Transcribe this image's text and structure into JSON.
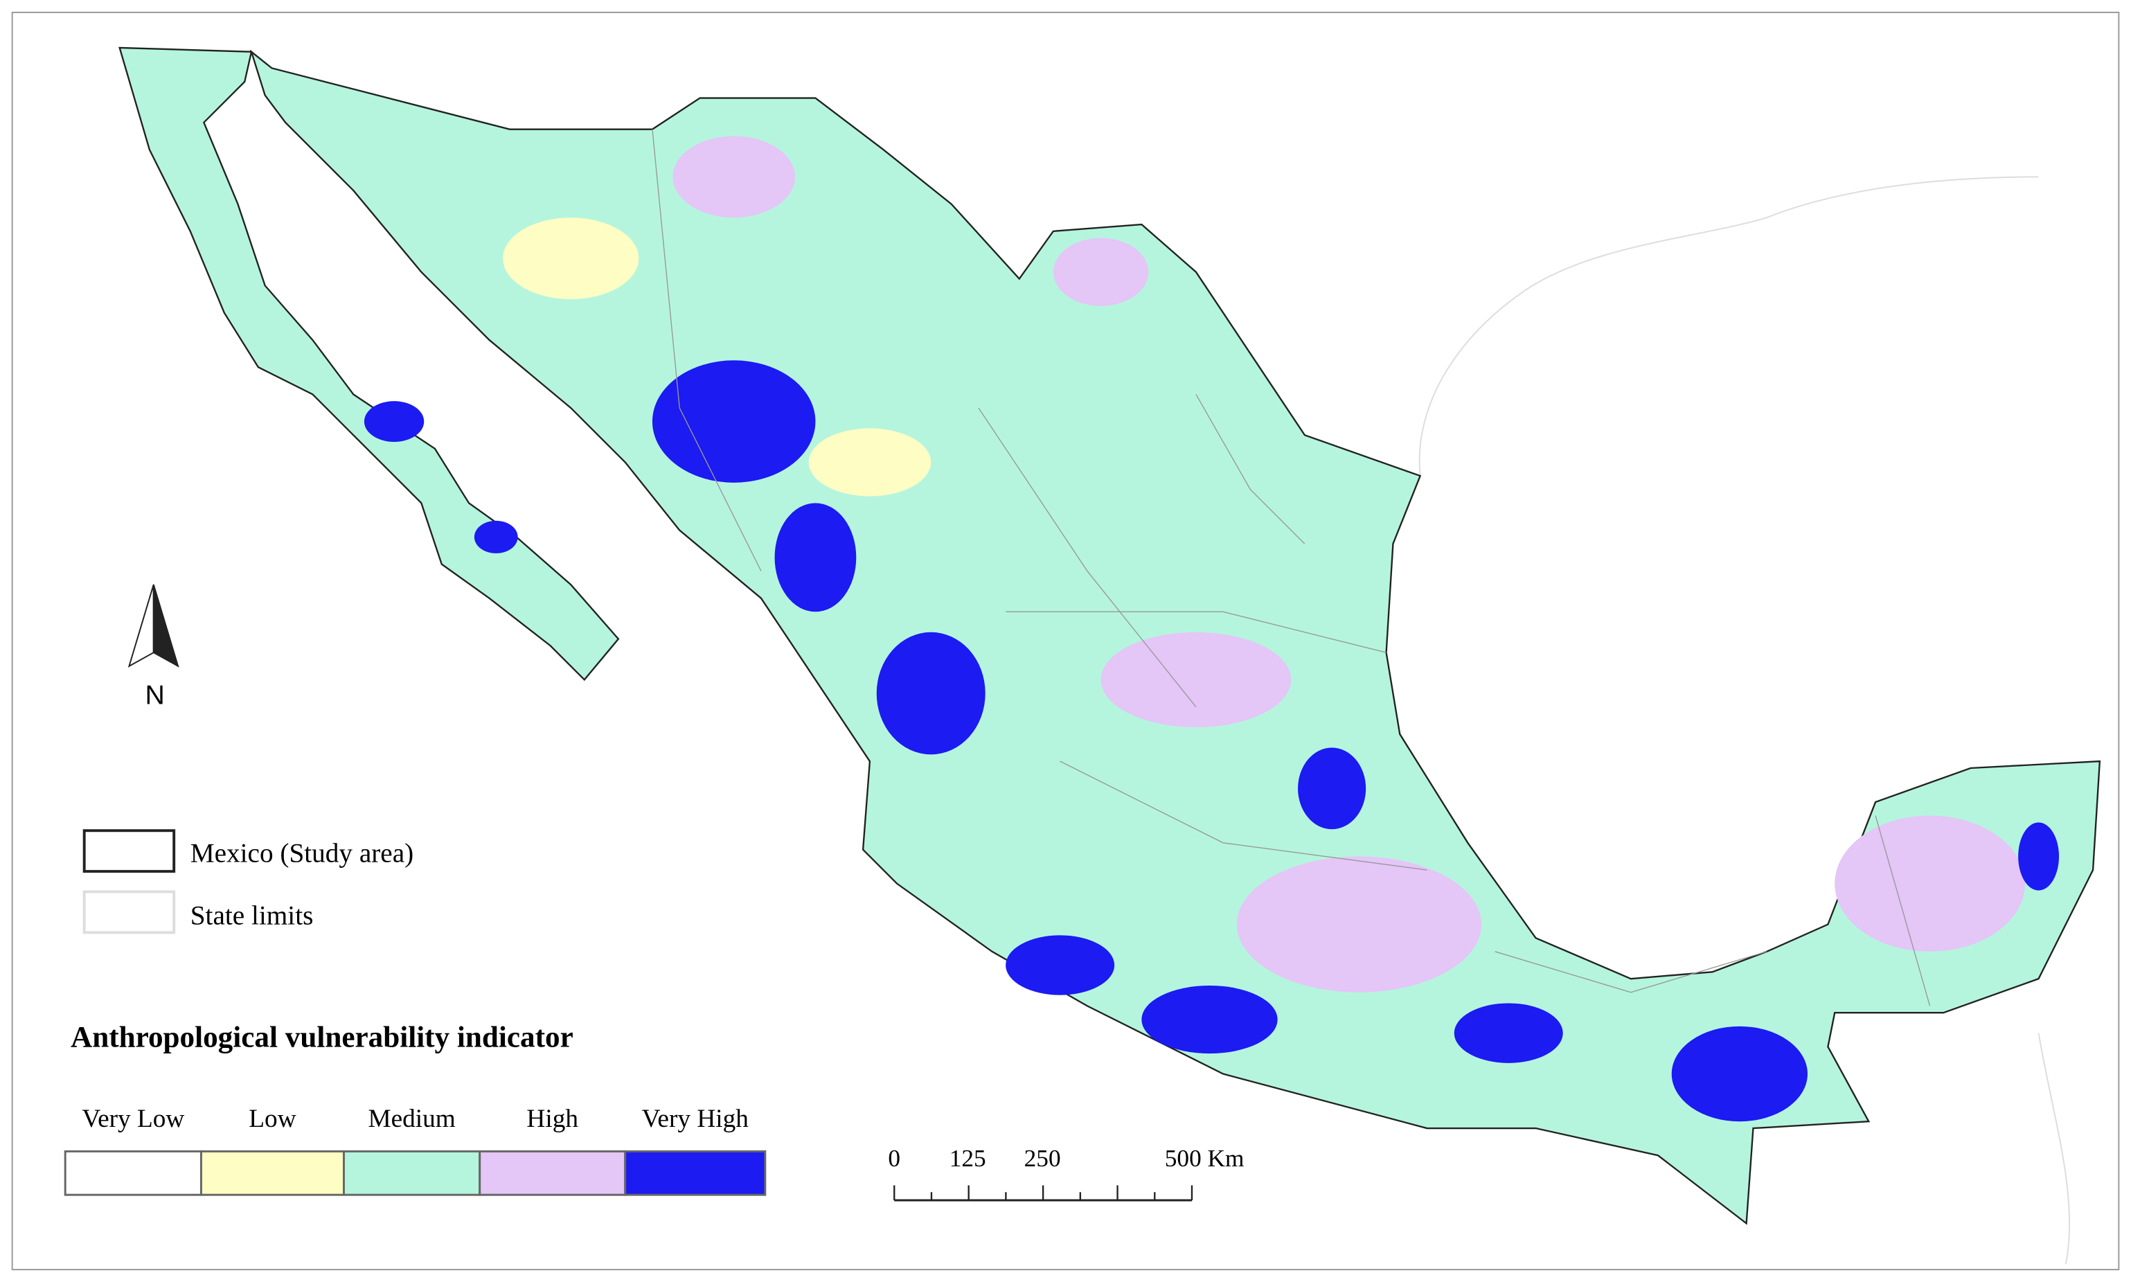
{
  "map": {
    "north_arrow": "N",
    "legend": {
      "study_area": "Mexico (Study area)",
      "state_limits": "State limits",
      "title": "Anthropological vulnerability indicator",
      "classes": [
        {
          "label": "Very Low",
          "color": "#ffffff"
        },
        {
          "label": "Low",
          "color": "#fdfdc4"
        },
        {
          "label": "Medium",
          "color": "#b5f5de"
        },
        {
          "label": "High",
          "color": "#e4c6f7"
        },
        {
          "label": "Very High",
          "color": "#1b1bf2"
        }
      ]
    },
    "scale_bar": {
      "labels": [
        "0",
        "125",
        "250",
        "500 Km"
      ]
    }
  }
}
